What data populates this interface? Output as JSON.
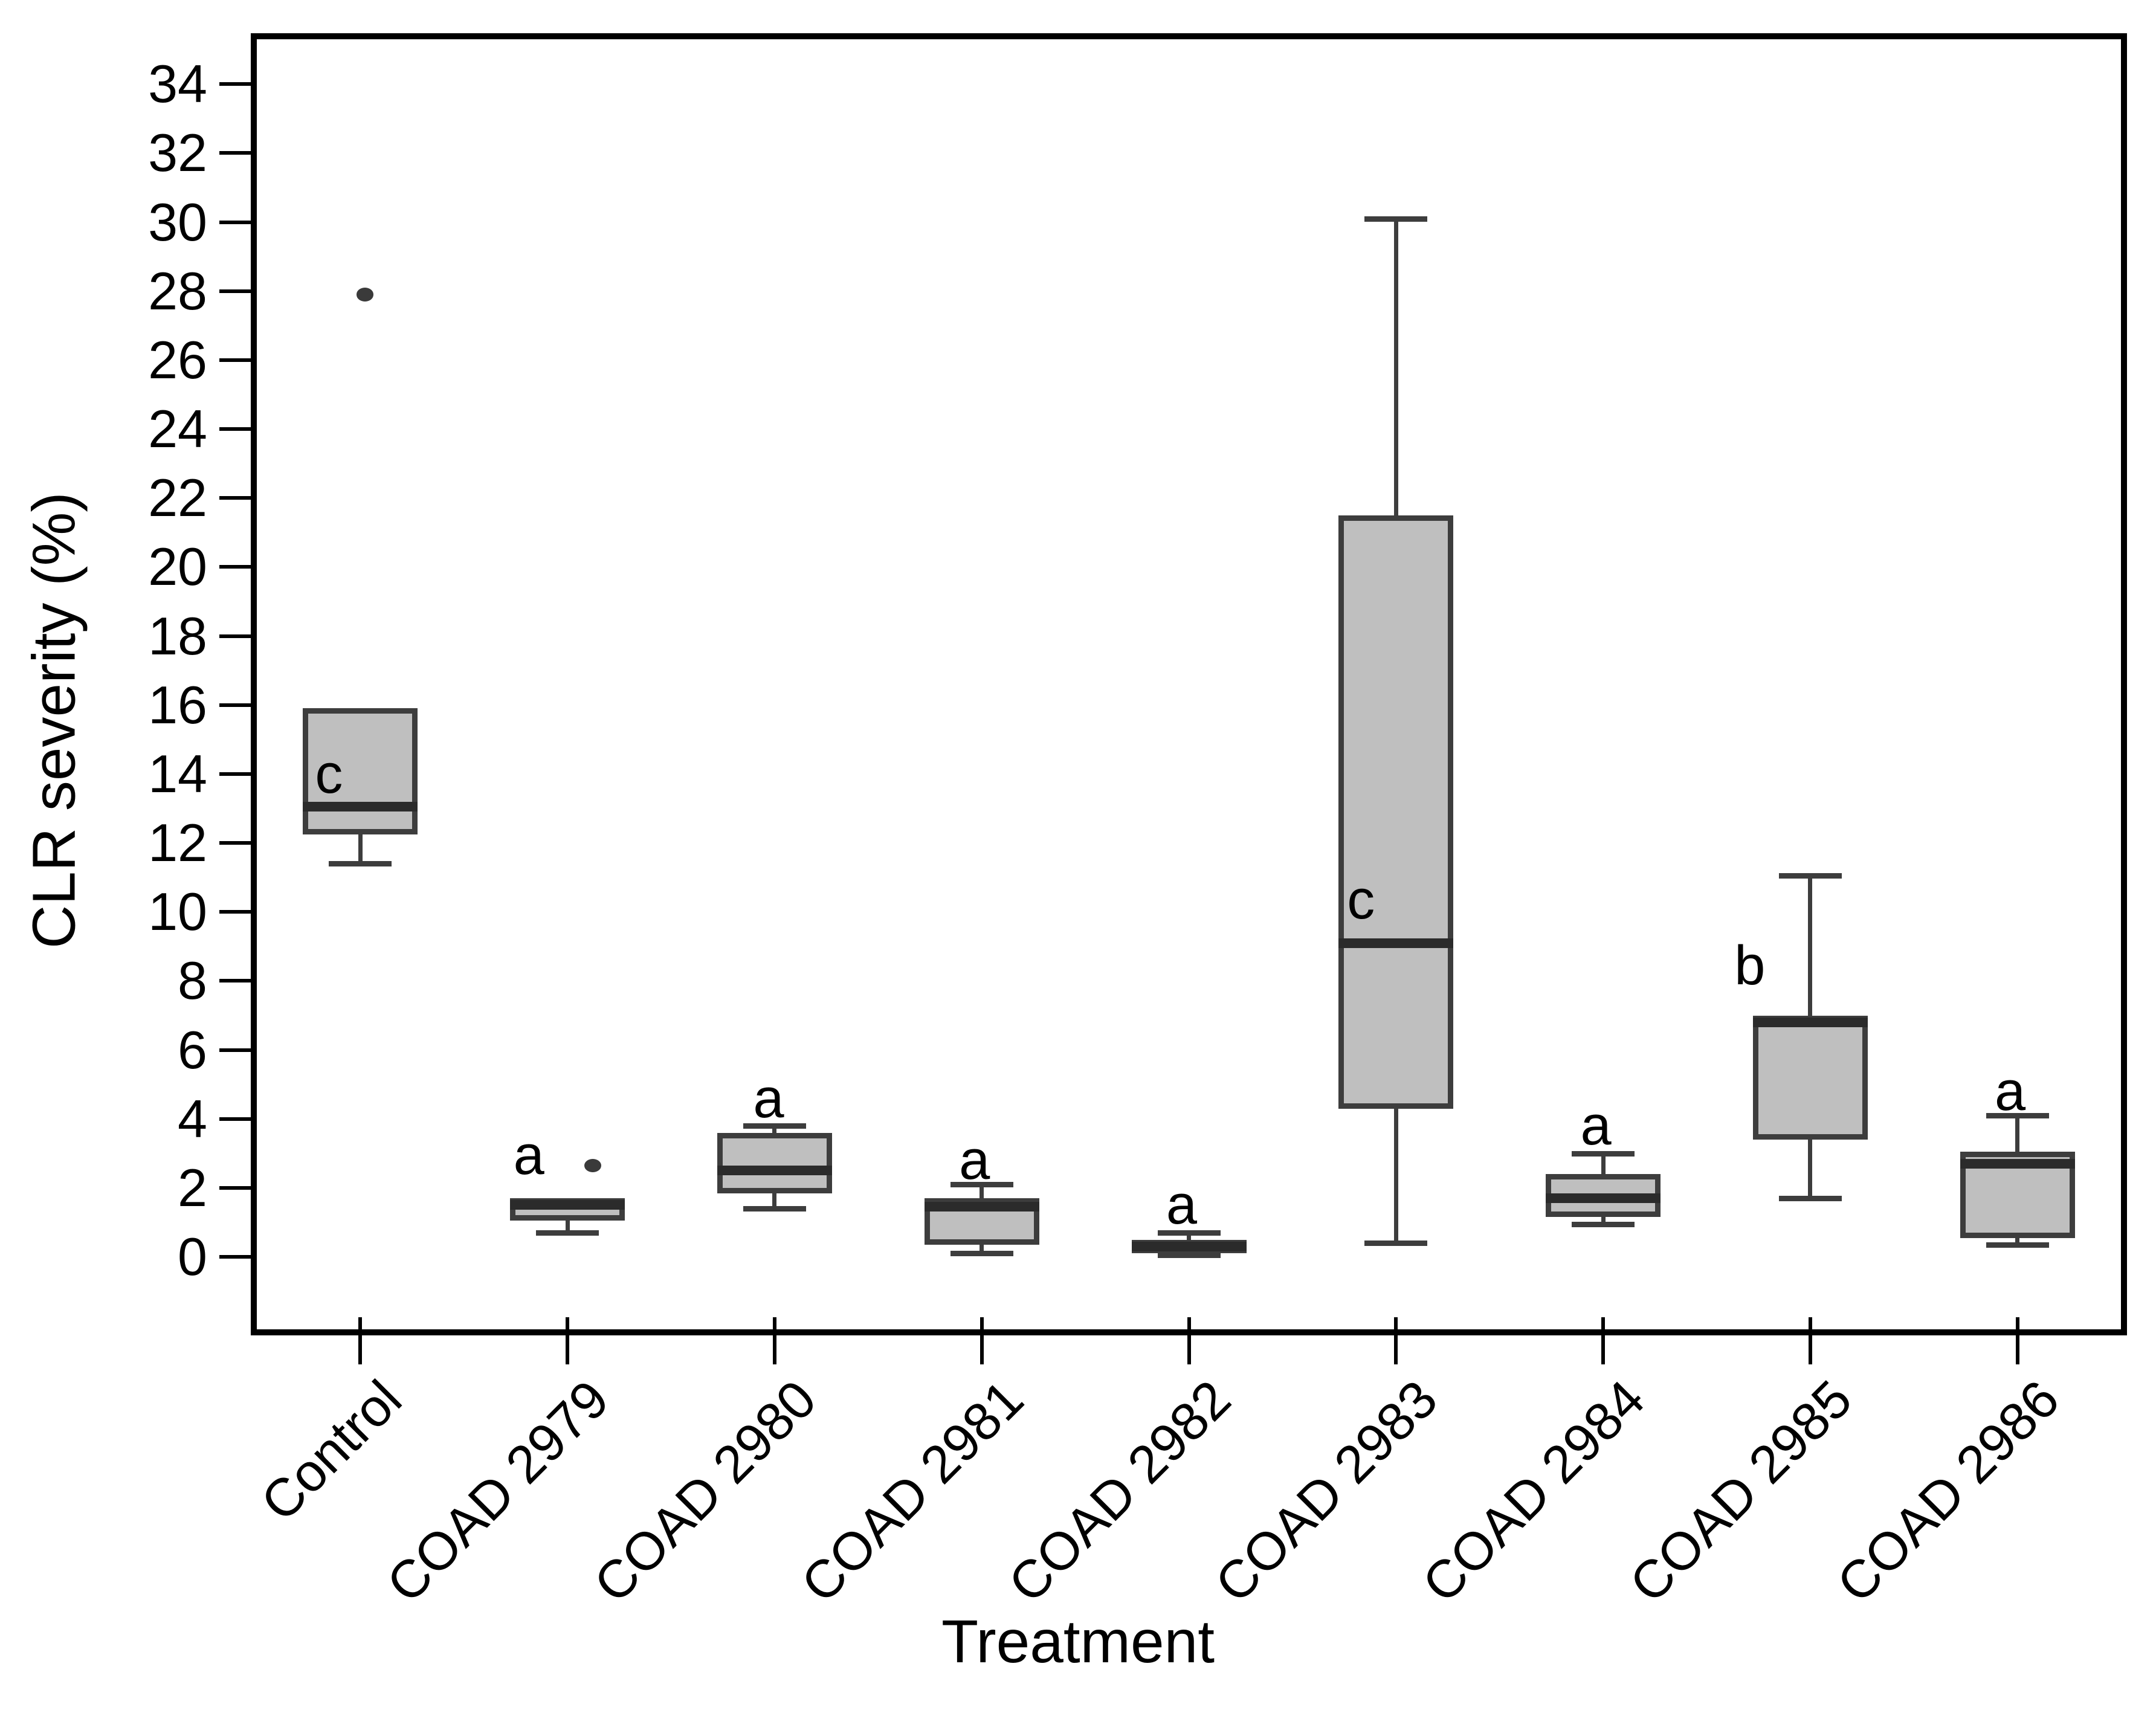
{
  "chart_data": {
    "type": "boxplot",
    "title": "",
    "xlabel": "Treatment",
    "ylabel": "CLR severity (%)",
    "ylim": [
      -2.1,
      35.3
    ],
    "y_ticks": [
      34,
      32,
      30,
      28,
      26,
      24,
      22,
      20,
      18,
      16,
      14,
      12,
      10,
      8,
      6,
      4,
      2,
      0
    ],
    "grid": false,
    "legend": "none",
    "significance_letters": [
      "c",
      "a",
      "a",
      "a",
      "a",
      "c",
      "a",
      "b",
      "a"
    ],
    "colors": {
      "box_fill": "#bfbfbf",
      "box_border": "#3d3d3d",
      "median": "#2b2b2b",
      "whisker": "#3d3d3d",
      "outlier": "#3a3a3a",
      "axis": "#000000",
      "text": "#000000"
    },
    "groups": [
      {
        "label": "Control",
        "letter": "c",
        "letter_dx": -52,
        "letter_y": 14.0,
        "min": 11.4,
        "q1": 12.25,
        "median": 13.05,
        "q3": 15.9,
        "max": 15.9,
        "outliers": [
          {
            "v": 27.9,
            "dx": 8
          }
        ]
      },
      {
        "label": "COAD 2979",
        "letter": "a",
        "letter_dx": -64,
        "letter_y": 2.95,
        "min": 0.7,
        "q1": 1.05,
        "median": 1.5,
        "q3": 1.7,
        "max": 1.7,
        "outliers": [
          {
            "v": 2.65,
            "dx": 42
          }
        ]
      },
      {
        "label": "COAD 2980",
        "letter": "a",
        "letter_dx": -10,
        "letter_y": 4.6,
        "min": 1.4,
        "q1": 1.85,
        "median": 2.5,
        "q3": 3.6,
        "max": 3.8,
        "outliers": []
      },
      {
        "label": "COAD 2981",
        "letter": "a",
        "letter_dx": -12,
        "letter_y": 2.8,
        "min": 0.1,
        "q1": 0.35,
        "median": 1.45,
        "q3": 1.7,
        "max": 2.1,
        "outliers": []
      },
      {
        "label": "COAD 2982",
        "letter": "a",
        "letter_dx": -12,
        "letter_y": 1.5,
        "min": 0.05,
        "q1": 0.1,
        "median": 0.3,
        "q3": 0.5,
        "max": 0.7,
        "outliers": []
      },
      {
        "label": "COAD 2983",
        "letter": "c",
        "letter_dx": -58,
        "letter_y": 10.35,
        "min": 0.4,
        "q1": 4.3,
        "median": 9.1,
        "q3": 21.5,
        "max": 30.1,
        "outliers": []
      },
      {
        "label": "COAD 2984",
        "letter": "a",
        "letter_dx": -12,
        "letter_y": 3.8,
        "min": 0.95,
        "q1": 1.15,
        "median": 1.7,
        "q3": 2.4,
        "max": 3.0,
        "outliers": []
      },
      {
        "label": "COAD 2985",
        "letter": "b",
        "letter_dx": -100,
        "letter_y": 8.45,
        "min": 1.7,
        "q1": 3.4,
        "median": 6.8,
        "q3": 7.0,
        "max": 11.05,
        "outliers": []
      },
      {
        "label": "COAD 2986",
        "letter": "a",
        "letter_dx": -12,
        "letter_y": 4.8,
        "min": 0.35,
        "q1": 0.55,
        "median": 2.7,
        "q3": 3.05,
        "max": 4.1,
        "outliers": []
      }
    ]
  }
}
